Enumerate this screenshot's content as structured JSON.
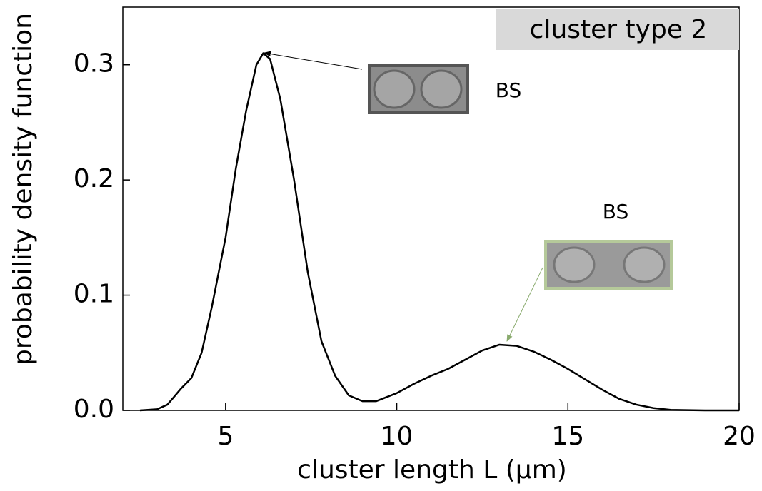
{
  "chart_data": {
    "type": "line",
    "xlabel": "cluster length L (μm)",
    "ylabel": "probability density function",
    "annotations": [
      "cluster type 2",
      "BS",
      "BS"
    ],
    "x": [
      2.5,
      3,
      3.3,
      3.5,
      3.7,
      4,
      4.3,
      4.6,
      5,
      5.3,
      5.6,
      5.9,
      6.1,
      6.3,
      6.6,
      7,
      7.4,
      7.8,
      8.2,
      8.6,
      9,
      9.4,
      10,
      10.5,
      11,
      11.5,
      12,
      12.5,
      13,
      13.5,
      14,
      14.5,
      15,
      15.5,
      16,
      16.5,
      17,
      17.5,
      18,
      19,
      20
    ],
    "series": [
      {
        "color": "#000000",
        "values": [
          0,
          0.001,
          0.005,
          0.012,
          0.019,
          0.028,
          0.05,
          0.09,
          0.15,
          0.21,
          0.26,
          0.3,
          0.31,
          0.305,
          0.27,
          0.2,
          0.12,
          0.06,
          0.03,
          0.013,
          0.008,
          0.008,
          0.015,
          0.023,
          0.03,
          0.036,
          0.044,
          0.052,
          0.057,
          0.056,
          0.051,
          0.044,
          0.036,
          0.027,
          0.018,
          0.01,
          0.005,
          0.002,
          0.0005,
          0,
          0
        ]
      }
    ],
    "xlim": [
      2,
      20
    ],
    "xticks": [
      5,
      10,
      15,
      20
    ],
    "ylim": [
      0,
      0.35
    ],
    "yticks": [
      {
        "value": 0,
        "label": "0.0"
      },
      0.1,
      0.2,
      0.3
    ]
  }
}
